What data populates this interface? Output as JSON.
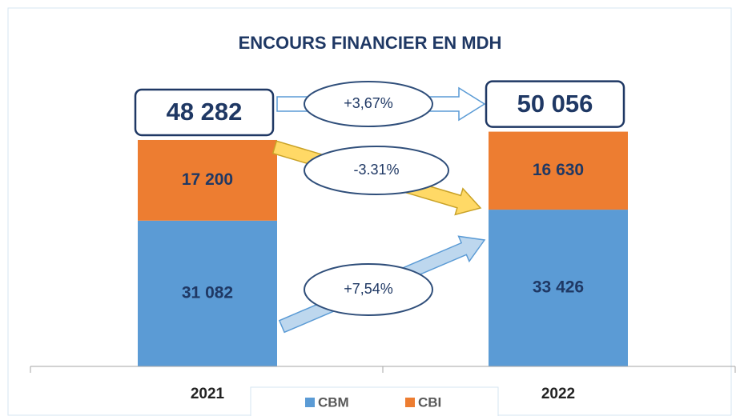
{
  "chart_data": {
    "type": "bar",
    "stacked": true,
    "title": "ENCOURS FINANCIER EN MDH",
    "categories": [
      "2021",
      "2022"
    ],
    "series": [
      {
        "name": "CBM",
        "color": "#5b9bd5",
        "values": [
          31082,
          33426
        ],
        "value_labels": [
          "31 082",
          "33 426"
        ]
      },
      {
        "name": "CBI",
        "color": "#ed7d31",
        "values": [
          17200,
          16630
        ],
        "value_labels": [
          "17 200",
          "16 630"
        ]
      }
    ],
    "totals": [
      48282,
      50056
    ],
    "total_labels": [
      "48 282",
      "50 056"
    ],
    "annotations": [
      "+3,67%",
      "-3.31%",
      "+7,54%"
    ],
    "legend": "bottom"
  }
}
